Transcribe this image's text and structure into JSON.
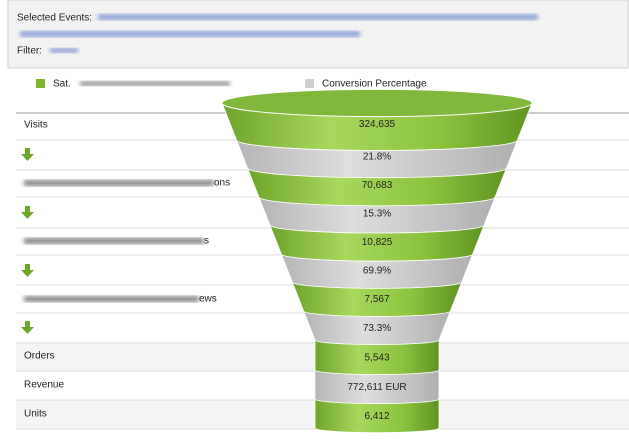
{
  "header": {
    "selected_events_label": "Selected Events:",
    "filter_label": "Filter:"
  },
  "legend": [
    "Sat.",
    "Conversion Percentage"
  ],
  "rows": [
    "Visits",
    "ons",
    "s",
    "ews",
    "Orders",
    "Revenue",
    "Units"
  ],
  "funnel": [
    "324,635",
    "21.8%",
    "70,683",
    "15.3%",
    "10,825",
    "69.9%",
    "7,567",
    "73.3%",
    "5,543",
    "772,611 EUR",
    "6,412"
  ]
}
